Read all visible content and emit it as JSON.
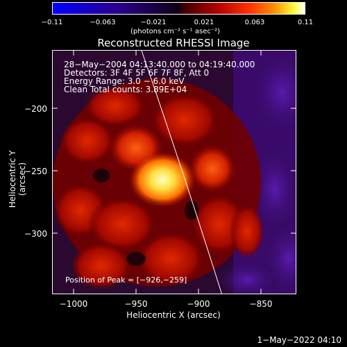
{
  "colorbar": {
    "ticks": [
      "−0.11",
      "−0.063",
      "−0.021",
      "0.021",
      "0.063",
      "0.11"
    ],
    "units": "(photons cm⁻² s⁻¹ asec⁻²)"
  },
  "title": "Reconstructed RHESSI Image",
  "info": {
    "line1": "28−May−2004 04:13:40.000 to 04:19:40.000",
    "line2": "Detectors: 3F 4F 5F 6F 7F 8F, Att 0",
    "line3": "Energy Range: 3.0 − 6.0 keV",
    "line4": "Clean    Total counts: 3.89E+04"
  },
  "peak_text": "Position of Peak = [−926,−259]",
  "axes": {
    "x_label": "Heliocentric X (arcsec)",
    "y_label": "Heliocentric Y (arcsec)",
    "x_ticks": [
      "−1000",
      "−950",
      "−900",
      "−850"
    ],
    "y_ticks": [
      "−200",
      "−250",
      "−300"
    ]
  },
  "timestamp": "1−May−2022 04:10",
  "colors": {
    "background": "#000000",
    "axis": "#ffffff",
    "peak": "#ffffa0",
    "source": "#c01000",
    "offlimb": "#3a0a6a"
  }
}
